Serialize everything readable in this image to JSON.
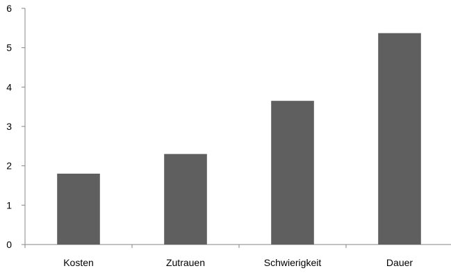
{
  "chart_data": {
    "type": "bar",
    "categories": [
      "Kosten",
      "Zutrauen",
      "Schwierigkeit",
      "Dauer"
    ],
    "values": [
      1.8,
      2.3,
      3.65,
      5.37
    ],
    "title": "",
    "xlabel": "",
    "ylabel": "",
    "ylim": [
      0,
      6
    ],
    "yticks": [
      "0",
      "1",
      "2",
      "3",
      "4",
      "5",
      "6"
    ],
    "grid": false,
    "legend": "none",
    "bar_color": "#5f5f5f",
    "axis_color": "#868686"
  }
}
